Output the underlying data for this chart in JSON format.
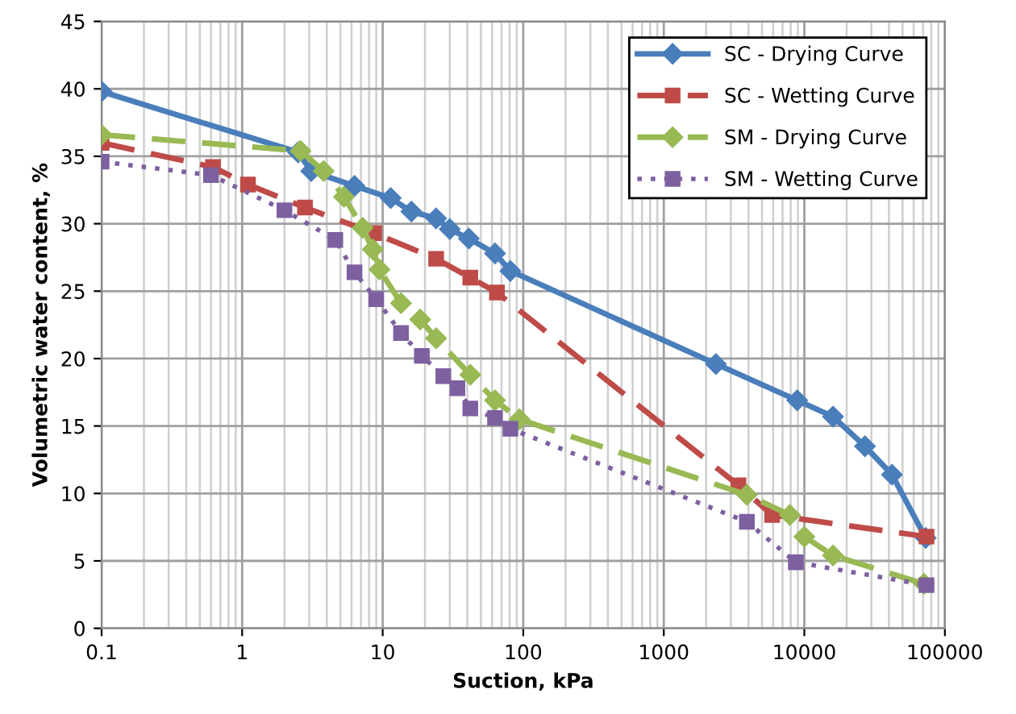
{
  "chart_data": {
    "type": "line",
    "xlabel": "Suction, kPa",
    "ylabel": "Volumetric water content, %",
    "log": "x",
    "xlim": [
      0.1,
      100000
    ],
    "xticks": [
      0.1,
      1,
      10,
      100,
      1000,
      10000,
      100000
    ],
    "ylim": [
      0,
      45
    ],
    "yticks": [
      0,
      5,
      10,
      15,
      20,
      25,
      30,
      35,
      40,
      45
    ],
    "grid": true,
    "legend": "top right",
    "series": [
      {
        "name": "SC - Drying Curve",
        "color": "#4a7ebb",
        "marker": "diamond",
        "line_style": "solid",
        "x": [
          0.1,
          2.5,
          3.1,
          6.3,
          11.4,
          16,
          24,
          30,
          41,
          63,
          81,
          2350,
          8900,
          16000,
          27000,
          42000,
          73000
        ],
        "values": [
          39.8,
          35.3,
          33.9,
          32.8,
          31.9,
          30.9,
          30.4,
          29.6,
          28.9,
          27.8,
          26.5,
          19.6,
          16.9,
          15.7,
          13.5,
          11.4,
          6.7
        ]
      },
      {
        "name": "SC - Wetting Curve",
        "color": "#be4b48",
        "marker": "square",
        "line_style": "dashed",
        "x": [
          0.1,
          0.62,
          1.1,
          2.8,
          8.7,
          24,
          42,
          65,
          3400,
          5900,
          74000
        ],
        "values": [
          36.0,
          34.2,
          32.9,
          31.2,
          29.3,
          27.4,
          26.0,
          24.9,
          10.6,
          8.4,
          6.8
        ]
      },
      {
        "name": "SM - Drying Curve",
        "color": "#98b954",
        "marker": "diamond",
        "line_style": "dashed",
        "x": [
          0.1,
          2.6,
          3.8,
          5.3,
          7.2,
          8.5,
          9.5,
          13.5,
          18.5,
          24,
          42,
          63,
          94,
          3900,
          7900,
          10000,
          16000,
          71000
        ],
        "values": [
          36.6,
          35.4,
          33.9,
          32.0,
          29.7,
          28.1,
          26.6,
          24.1,
          22.9,
          21.5,
          18.8,
          16.9,
          15.5,
          9.9,
          8.4,
          6.8,
          5.4,
          3.3
        ]
      },
      {
        "name": "SM - Wetting Curve",
        "color": "#7d60a0",
        "marker": "square",
        "line_style": "dotted",
        "x": [
          0.1,
          0.6,
          2.0,
          4.6,
          6.3,
          9,
          13.5,
          19,
          27,
          34,
          42,
          63,
          81,
          3900,
          8700,
          74000
        ],
        "values": [
          34.6,
          33.6,
          31.0,
          28.8,
          26.4,
          24.4,
          21.9,
          20.2,
          18.7,
          17.8,
          16.3,
          15.6,
          14.8,
          7.9,
          4.9,
          3.2
        ]
      }
    ]
  }
}
